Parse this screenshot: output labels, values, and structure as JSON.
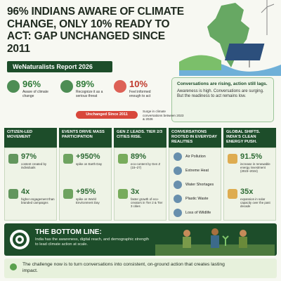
{
  "header": {
    "title": "96% INDIANS AWARE OF CLIMATE CHANGE, ONLY 10% READY TO ACT: GAP UNCHANGED SINCE 2011",
    "badge": "WeNaturalists Report 2026"
  },
  "stats": [
    {
      "value": "96%",
      "label": "Aware of climate change"
    },
    {
      "value": "89%",
      "label": "Recognize it as a serious threat"
    },
    {
      "value": "10%",
      "label": "Feel informed enough to act"
    }
  ],
  "insight": {
    "title": "Conversations are rising, action still lags.",
    "text": "Awareness is high. Conversations are surging. But the readiness to act remains low."
  },
  "notes": {
    "unchanged": "Unchanged Since 2011",
    "surge": "Surge in climate conversations between 2023 & 2026"
  },
  "columns": [
    {
      "title": "CITIZEN-LED MOVEMENT",
      "items": [
        {
          "value": "97%",
          "label": "content created by individuals"
        },
        {
          "value": "4x",
          "label": "higher engagement than branded campaigns"
        }
      ]
    },
    {
      "title": "EVENTS DRIVE MASS PARTICIPATION",
      "items": [
        {
          "value": "+950%",
          "label": "spike on Earth Day"
        },
        {
          "value": "+95%",
          "label": "spike on World Environment Day"
        }
      ]
    },
    {
      "title": "GEN Z LEADS. TIER 2/3 CITIES RISE.",
      "items": [
        {
          "value": "89%",
          "label": "eco-content by Gen Z (15–27)"
        },
        {
          "value": "3x",
          "label": "faster growth of eco-creators in Tier 2 & Tier 3 cities"
        }
      ]
    },
    {
      "title": "CONVERSATIONS ROOTED IN EVERYDAY REALITIES",
      "items": [
        {
          "label": "Air Pollution"
        },
        {
          "label": "Extreme Heat"
        },
        {
          "label": "Water Shortages"
        },
        {
          "label": "Plastic Waste"
        },
        {
          "label": "Loss of Wildlife"
        }
      ]
    },
    {
      "title": "GLOBAL SHIFTS. INDIA'S CLEAN ENERGY PUSH.",
      "items": [
        {
          "value": "91.5%",
          "label": "increase in renewable energy investment (2023–2024)"
        },
        {
          "value": "35x",
          "label": "expansion in solar capacity over the past decade"
        }
      ]
    }
  ],
  "bottom_line": {
    "title": "THE BOTTOM LINE:",
    "text": "India has the awareness, digital reach, and demographic strength to lead climate action at scale."
  },
  "footer": "The challenge now is to turn conversations into consistent, on-ground action that creates lasting impact."
}
